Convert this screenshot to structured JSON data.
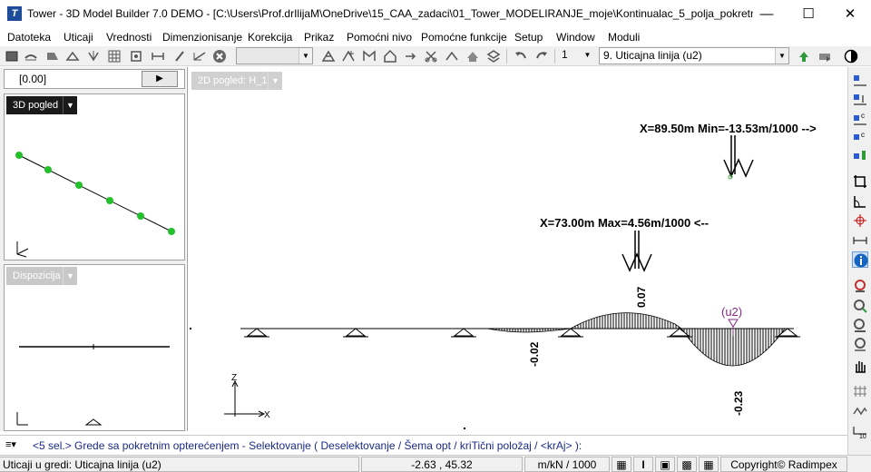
{
  "window": {
    "title": "Tower - 3D Model Builder 7.0 DEMO - [C:\\Users\\Prof.drIlijaM\\OneDrive\\15_CAA_zadaci\\01_Tower_MODELIRANJE_moje\\Kontinualac_5_polja_pokretn...",
    "app_icon": "tower-app-icon",
    "controls": [
      "—",
      "☐",
      "✕"
    ]
  },
  "menu": [
    "Datoteka",
    "Uticaji",
    "Vrednosti",
    "Dimenzionisanje",
    "Korekcija",
    "Prikaz",
    "Pomoćni nivo",
    "Pomoćne funkcije",
    "Setup",
    "Window",
    "Moduli"
  ],
  "toolbar": {
    "layer_combo_value": "",
    "page_value": "1",
    "influence_combo_value": "9. Uticajna linija (u2)",
    "colors": {
      "accent_green": "#2e9a3a",
      "accent_blue": "#2a5bd7",
      "info_blue": "#1565c0"
    }
  },
  "left_top": {
    "value_field": "[0.00]",
    "view_mode": "3D pogled"
  },
  "left_bottom": {
    "title": "Dispozicija"
  },
  "main": {
    "view_label": "2D pogled: H_1",
    "annotation_min": "X=89.50m Min=-13.53m/1000 -->",
    "annotation_max": "X=73.00m Max=4.56m/1000 <--",
    "label_u2": "(u2)",
    "value_labels": [
      "-0.02",
      "0.07",
      "-0.23"
    ],
    "axis_x": "X",
    "axis_z": "Z"
  },
  "command_line": {
    "text": "<5 sel.> Grede sa pokretnim opterećenjem - Selektovanje ( Deselektovanje / Šema opt / kriTični položaj / <krAj> ):"
  },
  "status_bar": {
    "message": "Uticaji u gredi: Uticajna linija (u2)",
    "coords": "-2.63 , 45.32",
    "units": "m/kN / 1000",
    "mode_i": "I",
    "copyright": "Copyright© Radimpex"
  }
}
